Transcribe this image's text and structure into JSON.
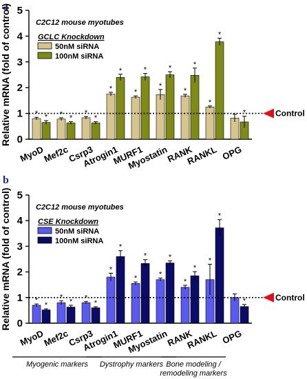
{
  "chart_data": [
    {
      "panel_letter": "a",
      "type": "bar",
      "subtitle": "C2C12 mouse myotubes",
      "legend_title": "GCLC Knockdown",
      "ylabel": "Relative mRNA (fold of control)",
      "ylim": [
        0,
        5
      ],
      "yticks": [
        "0",
        "1",
        "2",
        "3",
        "4",
        "5"
      ],
      "categories": [
        "MyoD",
        "Mef2c",
        "Csrp3",
        "Atrogin1",
        "MURF1",
        "Myostatin",
        "RANK",
        "RANKL",
        "OPG"
      ],
      "series": [
        {
          "name": "50nM siRNA",
          "color": "#d8c48f",
          "values": [
            0.8,
            0.78,
            0.83,
            1.75,
            1.63,
            1.73,
            1.68,
            1.25,
            0.82
          ],
          "errors": [
            0.05,
            0.05,
            0.05,
            0.07,
            0.05,
            0.2,
            0.06,
            0.04,
            0.15
          ]
        },
        {
          "name": "100nM siRNA",
          "color": "#7f8a17",
          "values": [
            0.65,
            0.63,
            0.63,
            2.4,
            2.42,
            2.5,
            2.48,
            3.78,
            0.67
          ],
          "errors": [
            0.07,
            0.05,
            0.05,
            0.12,
            0.13,
            0.12,
            0.28,
            0.14,
            0.22
          ]
        }
      ],
      "significant": [
        [
          true,
          true,
          true,
          true,
          true,
          true,
          true,
          true,
          false
        ],
        [
          true,
          true,
          true,
          true,
          true,
          true,
          true,
          true,
          true
        ]
      ],
      "reference_line": 1,
      "reference_label": "Control"
    },
    {
      "panel_letter": "b",
      "type": "bar",
      "subtitle": "C2C12 mouse myotubes",
      "legend_title": "CSE Knockdown",
      "ylabel": "Relative mRNA (fold of control)",
      "ylim": [
        0,
        5
      ],
      "yticks": [
        "0",
        "1",
        "2",
        "3",
        "4",
        "5"
      ],
      "categories": [
        "MyoD",
        "Mef2c",
        "Csrp3",
        "Atrogin1",
        "MURF1",
        "Myostatin",
        "RANK",
        "RANKL",
        "OPG"
      ],
      "series": [
        {
          "name": "50nM siRNA",
          "color": "#5a5af0",
          "values": [
            0.7,
            0.8,
            0.8,
            1.8,
            1.55,
            1.7,
            1.4,
            1.7,
            1.0
          ],
          "errors": [
            0.05,
            0.07,
            0.05,
            0.15,
            0.06,
            0.06,
            0.08,
            0.6,
            0.14
          ]
        },
        {
          "name": "100nM siRNA",
          "color": "#0b0b68",
          "values": [
            0.52,
            0.63,
            0.6,
            2.6,
            2.33,
            2.35,
            1.85,
            3.72,
            0.65
          ],
          "errors": [
            0.04,
            0.07,
            0.04,
            0.23,
            0.15,
            0.08,
            0.16,
            0.32,
            0.08
          ]
        }
      ],
      "significant": [
        [
          true,
          true,
          true,
          true,
          true,
          true,
          true,
          true,
          false
        ],
        [
          true,
          true,
          true,
          true,
          true,
          true,
          true,
          true,
          true
        ]
      ],
      "reference_line": 1,
      "reference_label": "Control",
      "groups": [
        {
          "label": "Myogenic markers",
          "categories": [
            "MyoD",
            "Mef2c",
            "Csrp3"
          ]
        },
        {
          "label": "Dystrophy markers",
          "categories": [
            "Atrogin1",
            "MURF1",
            "Myostatin"
          ]
        },
        {
          "label": "Bone modeling / remodeling markers",
          "lines": [
            "Bone modeling /",
            "remodeling markers"
          ],
          "categories": [
            "RANK",
            "RANKL"
          ]
        }
      ]
    }
  ]
}
